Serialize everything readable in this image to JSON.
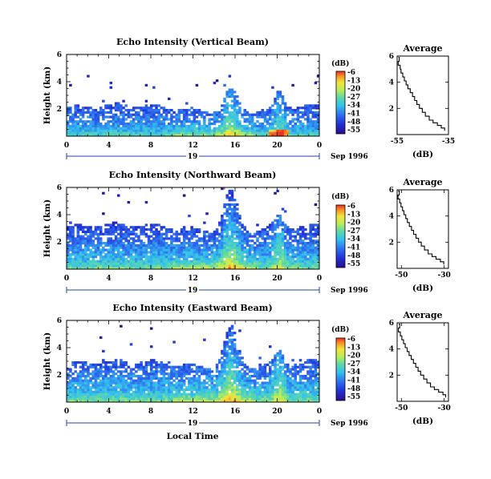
{
  "figure": {
    "xlabel": "Local Time",
    "date_label": "Sep 1996",
    "day_label": "19"
  },
  "chart_data": [
    {
      "type": "heatmap",
      "title": "Echo Intensity (Vertical Beam)",
      "xlabel": "",
      "ylabel": "Height (km)",
      "x_ticks": [
        "0",
        "4",
        "8",
        "12",
        "16",
        "20",
        "0"
      ],
      "y_ticks": [
        "2",
        "4",
        "6"
      ],
      "xlim": [
        0,
        24
      ],
      "ylim": [
        0,
        6
      ],
      "colorbar": {
        "unit": "(dB)",
        "labels": [
          "-6",
          "-13",
          "-20",
          "-27",
          "-34",
          "-41",
          "-48",
          "-55"
        ]
      },
      "profile": {
        "title": "Average",
        "xlabel": "(dB)",
        "x_ticks": [
          "-55",
          "-35"
        ],
        "xlim": [
          -55,
          -35
        ],
        "y_ticks": [
          "2",
          "4",
          "6"
        ],
        "points": [
          [
            -54.5,
            5.9
          ],
          [
            -54.2,
            5.6
          ],
          [
            -54.6,
            5.3
          ],
          [
            -53.8,
            5.0
          ],
          [
            -53.5,
            4.7
          ],
          [
            -52.8,
            4.4
          ],
          [
            -52.2,
            4.1
          ],
          [
            -51.5,
            3.8
          ],
          [
            -50.8,
            3.5
          ],
          [
            -49.9,
            3.2
          ],
          [
            -49.0,
            2.9
          ],
          [
            -48.2,
            2.6
          ],
          [
            -47.3,
            2.3
          ],
          [
            -46.3,
            2.0
          ],
          [
            -45.2,
            1.7
          ],
          [
            -44.0,
            1.4
          ],
          [
            -42.5,
            1.1
          ],
          [
            -41.0,
            0.9
          ],
          [
            -39.3,
            0.7
          ],
          [
            -37.8,
            0.5
          ],
          [
            -36.5,
            0.3
          ]
        ]
      }
    },
    {
      "type": "heatmap",
      "title": "Echo Intensity (Northward Beam)",
      "xlabel": "",
      "ylabel": "Height (km)",
      "x_ticks": [
        "0",
        "4",
        "8",
        "12",
        "16",
        "20",
        "0"
      ],
      "y_ticks": [
        "2",
        "4",
        "6"
      ],
      "xlim": [
        0,
        24
      ],
      "ylim": [
        0,
        6
      ],
      "colorbar": {
        "unit": "(dB)",
        "labels": [
          "-6",
          "-13",
          "-20",
          "-27",
          "-34",
          "-41",
          "-48",
          "-55"
        ]
      },
      "profile": {
        "title": "Average",
        "xlabel": "(dB)",
        "x_ticks": [
          "-50",
          "-30"
        ],
        "xlim": [
          -52,
          -28
        ],
        "y_ticks": [
          "2",
          "4",
          "6"
        ],
        "points": [
          [
            -51.5,
            5.9
          ],
          [
            -51.0,
            5.6
          ],
          [
            -51.6,
            5.3
          ],
          [
            -50.8,
            5.0
          ],
          [
            -50.2,
            4.7
          ],
          [
            -49.5,
            4.4
          ],
          [
            -48.8,
            4.1
          ],
          [
            -48.0,
            3.8
          ],
          [
            -47.2,
            3.5
          ],
          [
            -46.3,
            3.2
          ],
          [
            -45.3,
            2.9
          ],
          [
            -44.3,
            2.6
          ],
          [
            -43.2,
            2.3
          ],
          [
            -42.0,
            2.0
          ],
          [
            -40.7,
            1.7
          ],
          [
            -39.2,
            1.4
          ],
          [
            -37.5,
            1.1
          ],
          [
            -35.7,
            0.9
          ],
          [
            -33.8,
            0.7
          ],
          [
            -31.8,
            0.5
          ],
          [
            -30.2,
            0.3
          ]
        ]
      }
    },
    {
      "type": "heatmap",
      "title": "Echo Intensity (Eastward Beam)",
      "xlabel": "Local Time",
      "ylabel": "Height (km)",
      "x_ticks": [
        "0",
        "4",
        "8",
        "12",
        "16",
        "20",
        "0"
      ],
      "y_ticks": [
        "2",
        "4",
        "6"
      ],
      "xlim": [
        0,
        24
      ],
      "ylim": [
        0,
        6
      ],
      "colorbar": {
        "unit": "(dB)",
        "labels": [
          "-6",
          "-13",
          "-20",
          "-27",
          "-34",
          "-41",
          "-48",
          "-55"
        ]
      },
      "profile": {
        "title": "Average",
        "xlabel": "(dB)",
        "x_ticks": [
          "-50",
          "-30"
        ],
        "xlim": [
          -52,
          -28
        ],
        "y_ticks": [
          "2",
          "4",
          "6"
        ],
        "points": [
          [
            -51.2,
            5.9
          ],
          [
            -50.8,
            5.6
          ],
          [
            -51.4,
            5.3
          ],
          [
            -50.5,
            5.0
          ],
          [
            -49.8,
            4.7
          ],
          [
            -49.0,
            4.4
          ],
          [
            -48.2,
            4.1
          ],
          [
            -47.3,
            3.8
          ],
          [
            -46.4,
            3.5
          ],
          [
            -45.4,
            3.2
          ],
          [
            -44.4,
            2.9
          ],
          [
            -43.3,
            2.6
          ],
          [
            -42.2,
            2.3
          ],
          [
            -41.0,
            2.0
          ],
          [
            -39.6,
            1.7
          ],
          [
            -38.1,
            1.4
          ],
          [
            -36.4,
            1.1
          ],
          [
            -34.6,
            0.9
          ],
          [
            -32.6,
            0.7
          ],
          [
            -30.6,
            0.5
          ],
          [
            -29.3,
            0.3
          ]
        ]
      }
    }
  ]
}
